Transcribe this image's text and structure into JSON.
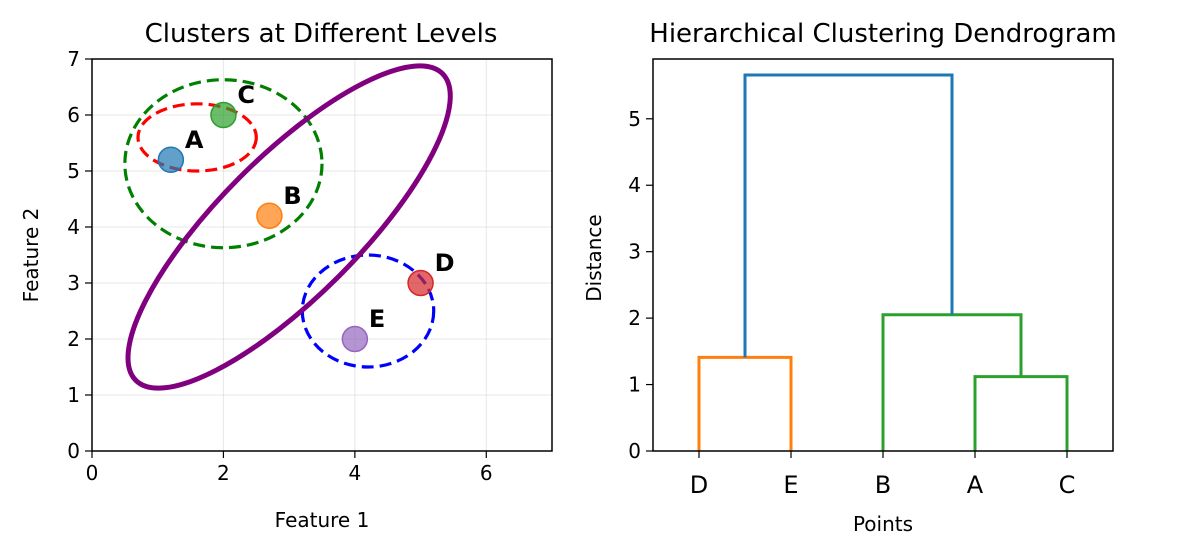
{
  "chart_data": [
    {
      "type": "scatter",
      "title": "Clusters at Different Levels",
      "xlabel": "Feature 1",
      "ylabel": "Feature 2",
      "xlim": [
        0,
        7
      ],
      "ylim": [
        0,
        7
      ],
      "xticks": [
        "0",
        "2",
        "4",
        "6"
      ],
      "yticks": [
        "0",
        "1",
        "2",
        "3",
        "4",
        "5",
        "6",
        "7"
      ],
      "grid": true,
      "points": [
        {
          "label": "A",
          "x": 1.2,
          "y": 5.2,
          "color": "#1f77b4"
        },
        {
          "label": "B",
          "x": 2.7,
          "y": 4.2,
          "color": "#ff7f0e"
        },
        {
          "label": "C",
          "x": 2.0,
          "y": 6.0,
          "color": "#2ca02c"
        },
        {
          "label": "D",
          "x": 5.0,
          "y": 3.0,
          "color": "#d62728"
        },
        {
          "label": "E",
          "x": 4.0,
          "y": 2.0,
          "color": "#9467bd"
        }
      ],
      "cluster_outlines": [
        {
          "members": [
            "A",
            "C"
          ],
          "cx": 1.6,
          "cy": 5.6,
          "rx": 0.9,
          "ry": 0.6,
          "angle": 0,
          "color": "#ff0000",
          "style": "dashed"
        },
        {
          "members": [
            "A",
            "B",
            "C"
          ],
          "cx": 2.0,
          "cy": 5.13,
          "rx": 1.5,
          "ry": 1.5,
          "angle": 0,
          "color": "#008000",
          "style": "dashed"
        },
        {
          "members": [
            "D",
            "E"
          ],
          "cx": 4.2,
          "cy": 2.5,
          "rx": 1.0,
          "ry": 1.0,
          "angle": 0,
          "color": "#0000ff",
          "style": "dashed"
        },
        {
          "members": [
            "A",
            "B",
            "C",
            "D",
            "E"
          ],
          "cx": 3.0,
          "cy": 4.0,
          "rx": 3.3,
          "ry": 1.25,
          "angle": -45,
          "color": "#800080",
          "style": "solid"
        }
      ]
    },
    {
      "type": "dendrogram",
      "title": "Hierarchical Clustering Dendrogram",
      "xlabel": "Points",
      "ylabel": "Distance",
      "leaves": [
        "D",
        "E",
        "B",
        "A",
        "C"
      ],
      "ylim": [
        0,
        5.9
      ],
      "yticks": [
        "0",
        "1",
        "2",
        "3",
        "4",
        "5"
      ],
      "links": [
        {
          "left": 0,
          "right": 1,
          "left_height": 0,
          "right_height": 0,
          "height": 1.41,
          "color": "#ff7f0e"
        },
        {
          "left": 3,
          "right": 4,
          "left_height": 0,
          "right_height": 0,
          "height": 1.12,
          "color": "#2ca02c"
        },
        {
          "left": 2,
          "right": 3.5,
          "left_height": 0,
          "right_height": 1.12,
          "height": 2.05,
          "color": "#2ca02c"
        },
        {
          "left": 0.5,
          "right": 2.75,
          "left_height": 1.41,
          "right_height": 2.05,
          "height": 5.66,
          "color": "#1f77b4"
        }
      ]
    }
  ]
}
